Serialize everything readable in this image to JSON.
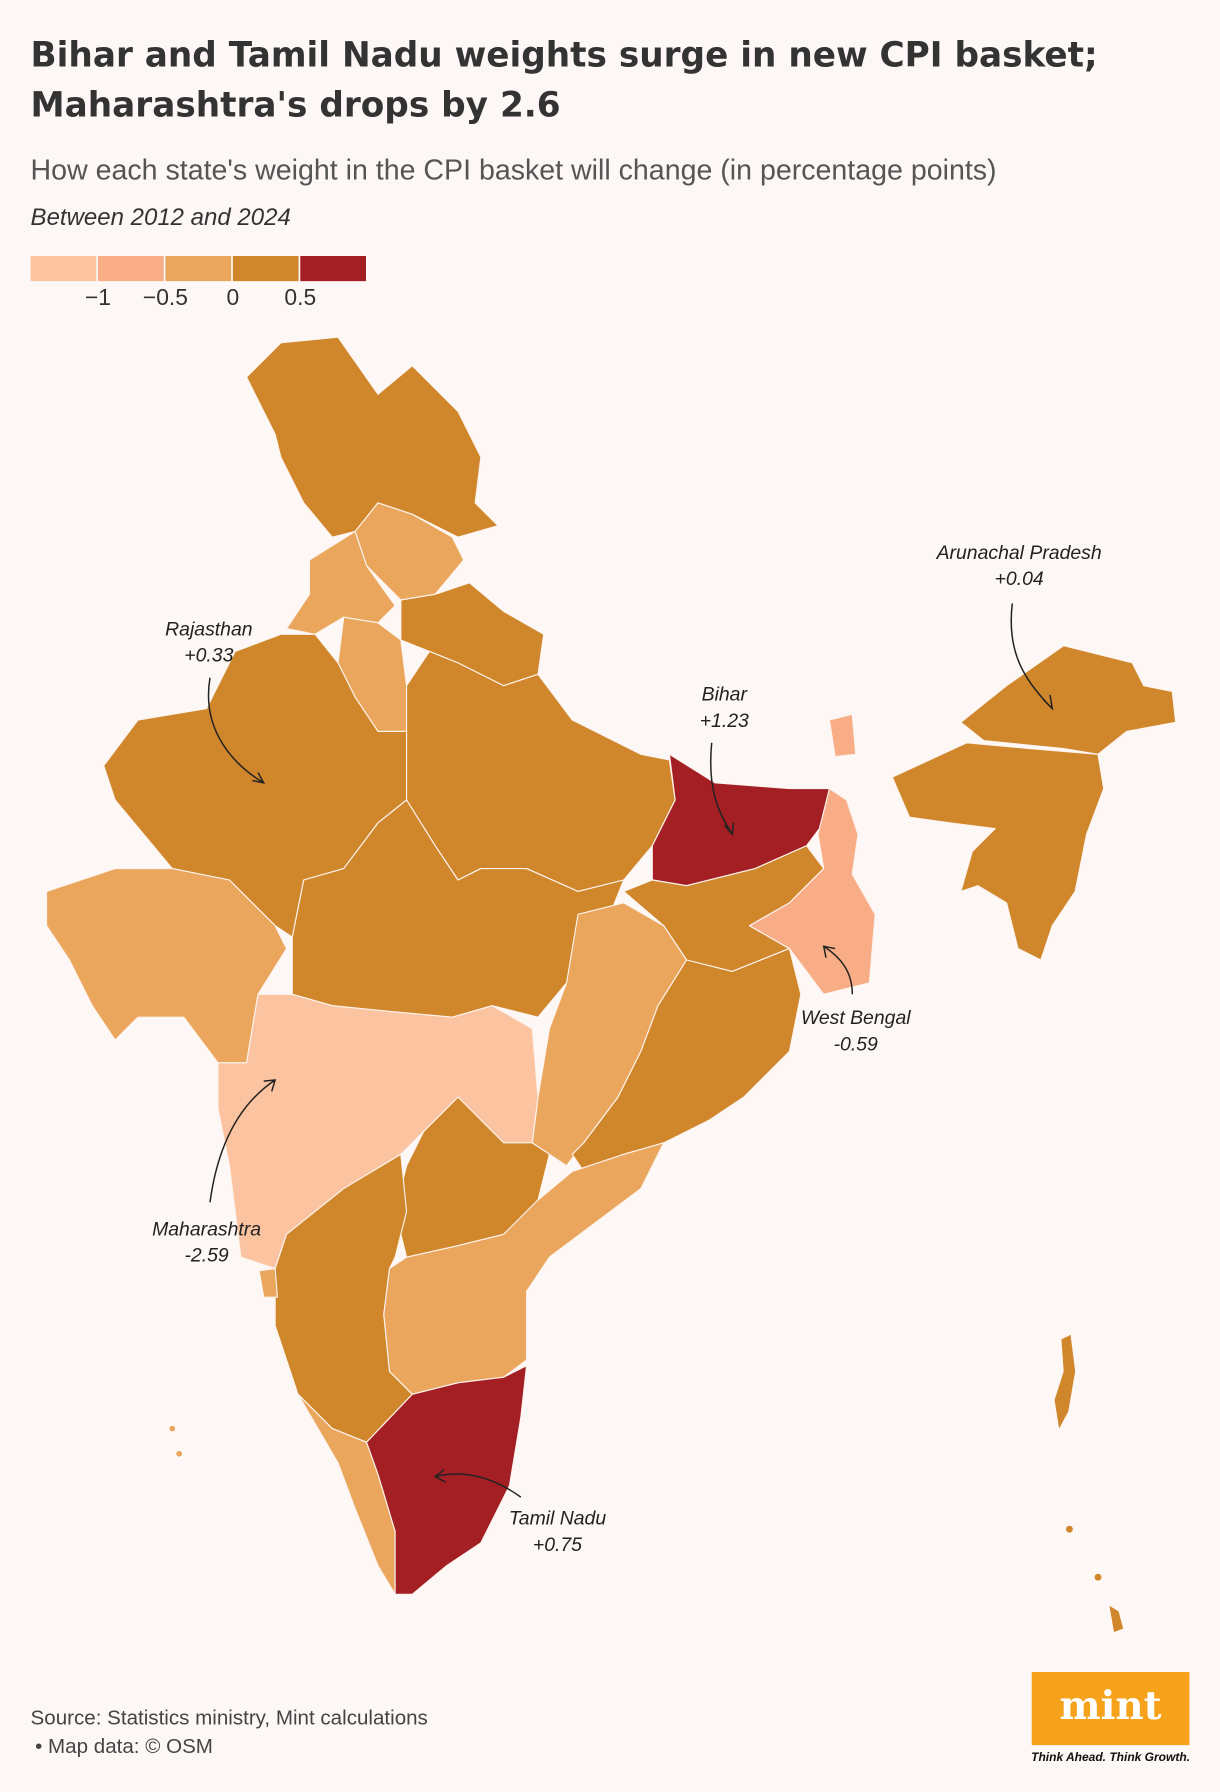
{
  "title": [
    "Bihar and Tamil Nadu weights surge in new CPI basket;",
    "Maharashtra's drops by 2.6"
  ],
  "subtitle": "How each state's weight in the CPI basket will change (in percentage points)",
  "note": "Between 2012 and 2024",
  "legend": {
    "colors": [
      "#fbc3a0",
      "#f8ad86",
      "#eaa65c",
      "#d0862b",
      "#a31f24"
    ],
    "ticks": [
      {
        "value": -1,
        "label": "−1"
      },
      {
        "value": -0.5,
        "label": "−0.5"
      },
      0,
      0.5
    ]
  },
  "annotations": [
    {
      "name": "Arunachal Pradesh",
      "value": 0.04,
      "label": "+0.04"
    },
    {
      "name": "Rajasthan",
      "value": 0.33,
      "label": "+0.33"
    },
    {
      "name": "Bihar",
      "value": 1.23,
      "label": "+1.23"
    },
    {
      "name": "West Bengal",
      "value": -0.59,
      "label": "-0.59"
    },
    {
      "name": "Maharashtra",
      "value": -2.59,
      "label": "-2.59"
    },
    {
      "name": "Tamil Nadu",
      "value": 0.75,
      "label": "+0.75"
    }
  ],
  "source": [
    "Source: Statistics ministry, Mint calculations",
    "• Map data: © OSM"
  ],
  "logo": {
    "text": "mint",
    "tagline": "Think Ahead. Think Growth."
  }
}
